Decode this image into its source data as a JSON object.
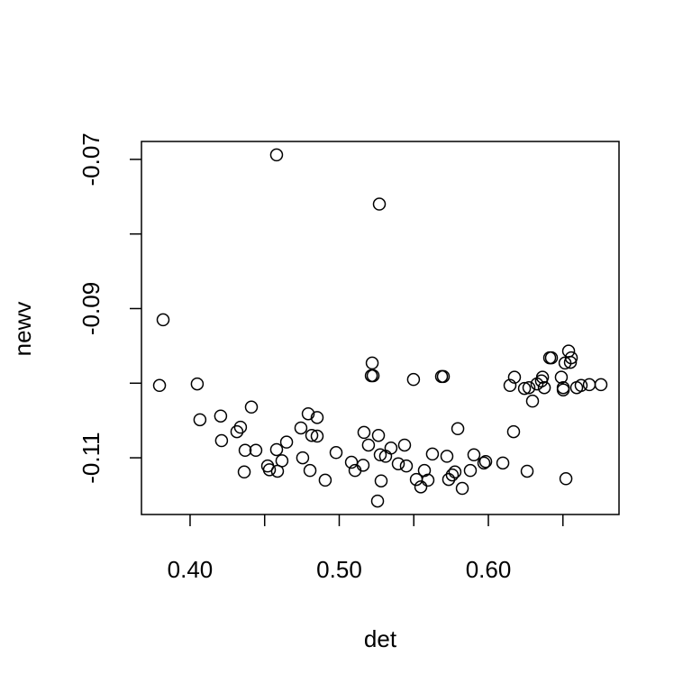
{
  "chart_data": {
    "type": "scatter",
    "x_label": "det",
    "y_label": "newv",
    "x": [
      0.3795,
      0.3819,
      0.4048,
      0.4066,
      0.4205,
      0.4211,
      0.4314,
      0.4338,
      0.4369,
      0.4363,
      0.4411,
      0.4441,
      0.452,
      0.4532,
      0.458,
      0.4586,
      0.4616,
      0.4647,
      0.458,
      0.4743,
      0.4755,
      0.4792,
      0.4804,
      0.4816,
      0.4852,
      0.4852,
      0.4906,
      0.4979,
      0.5082,
      0.5106,
      0.516,
      0.5166,
      0.5196,
      0.5221,
      0.5215,
      0.5227,
      0.5263,
      0.5269,
      0.5275,
      0.5281,
      0.5257,
      0.5311,
      0.5347,
      0.5396,
      0.5438,
      0.545,
      0.5498,
      0.5517,
      0.5547,
      0.5571,
      0.5595,
      0.5625,
      0.5686,
      0.5698,
      0.5722,
      0.5734,
      0.5758,
      0.5776,
      0.5795,
      0.5825,
      0.5879,
      0.5903,
      0.597,
      0.5982,
      0.6097,
      0.6145,
      0.6169,
      0.6175,
      0.6242,
      0.626,
      0.6272,
      0.6296,
      0.6326,
      0.6356,
      0.6375,
      0.6363,
      0.6411,
      0.6423,
      0.6489,
      0.6502,
      0.6502,
      0.6514,
      0.652,
      0.6538,
      0.655,
      0.6556,
      0.6592,
      0.6622,
      0.6677,
      0.6755
    ],
    "values": [
      -0.1003,
      -0.0915,
      -0.1001,
      -0.1049,
      -0.1044,
      -0.1077,
      -0.1065,
      -0.1059,
      -0.109,
      -0.1119,
      -0.1032,
      -0.109,
      -0.1111,
      -0.1116,
      -0.1089,
      -0.1118,
      -0.1104,
      -0.1079,
      -0.0694,
      -0.106,
      -0.11,
      -0.1041,
      -0.1117,
      -0.107,
      -0.1046,
      -0.1071,
      -0.113,
      -0.1093,
      -0.1106,
      -0.1117,
      -0.111,
      -0.1066,
      -0.1083,
      -0.0973,
      -0.099,
      -0.099,
      -0.107,
      -0.076,
      -0.1096,
      -0.1131,
      -0.1158,
      -0.1098,
      -0.1087,
      -0.1108,
      -0.1083,
      -0.1111,
      -0.0995,
      -0.1129,
      -0.1139,
      -0.1117,
      -0.113,
      -0.1095,
      -0.0991,
      -0.0991,
      -0.1098,
      -0.1129,
      -0.1123,
      -0.1119,
      -0.1061,
      -0.1141,
      -0.1117,
      -0.1096,
      -0.1107,
      -0.1105,
      -0.1107,
      -0.1003,
      -0.1065,
      -0.0992,
      -0.1007,
      -0.1118,
      -0.1006,
      -0.1024,
      -0.1001,
      -0.0997,
      -0.1006,
      -0.0992,
      -0.0966,
      -0.0966,
      -0.0992,
      -0.1009,
      -0.1006,
      -0.0973,
      -0.1128,
      -0.0957,
      -0.0972,
      -0.0966,
      -0.1006,
      -0.1003,
      -0.1002,
      -0.1002
    ],
    "color": "#000000",
    "xlim": [
      0.3674,
      0.6876
    ],
    "ylim": [
      -0.1176,
      -0.0676
    ],
    "xticks": [
      {
        "value": 0.4,
        "label": "0.40"
      },
      {
        "value": 0.5,
        "label": "0.50"
      },
      {
        "value": 0.6,
        "label": "0.60"
      }
    ],
    "xminorticks": [
      0.45,
      0.55,
      0.65
    ],
    "yticks": [
      -0.07,
      -0.09,
      -0.11
    ],
    "yminorticks": [
      -0.08,
      -0.1
    ]
  }
}
